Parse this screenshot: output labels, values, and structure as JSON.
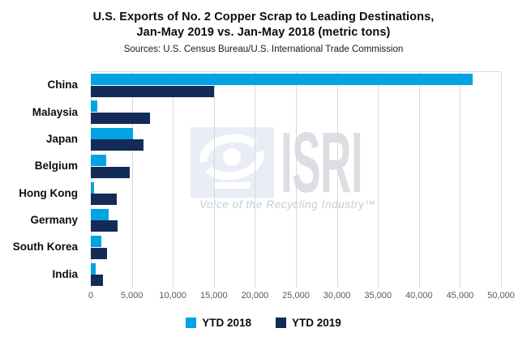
{
  "title": {
    "line1": "U.S. Exports of No. 2 Copper Scrap to Leading Destinations,",
    "line2": "Jan-May 2019 vs. Jan-May 2018 (metric tons)",
    "sources": "Sources: U.S. Census Bureau/U.S. International Trade Commission"
  },
  "watermark": {
    "name": "ISRI",
    "tagline": "Voice of the Recycling Industry™",
    "eye-logo-icon": "isri-eye-logo"
  },
  "colors": {
    "ytd2018": "#00a4e4",
    "ytd2019": "#122b57",
    "gridline": "#d9d9d9",
    "axis_text": "#595959",
    "watermark_square": "#e9edf5",
    "watermark_text": "#dcdee3",
    "watermark_tagline": "#c7ccd6"
  },
  "legend": [
    {
      "label": "YTD 2018",
      "color": "#00a4e4"
    },
    {
      "label": "YTD 2019",
      "color": "#122b57"
    }
  ],
  "chart_data": {
    "type": "bar",
    "orientation": "horizontal",
    "title": "U.S. Exports of No. 2 Copper Scrap to Leading Destinations, Jan-May 2019 vs. Jan-May 2018 (metric tons)",
    "categories": [
      "China",
      "Malaysia",
      "Japan",
      "Belgium",
      "Hong Kong",
      "Germany",
      "South Korea",
      "India"
    ],
    "series": [
      {
        "name": "YTD 2018",
        "color": "#00a4e4",
        "values": [
          46500,
          800,
          5100,
          1900,
          400,
          2200,
          1300,
          550
        ]
      },
      {
        "name": "YTD 2019",
        "color": "#122b57",
        "values": [
          15000,
          7200,
          6400,
          4700,
          3200,
          3300,
          2000,
          1500
        ]
      }
    ],
    "xlabel": "",
    "ylabel": "",
    "xlim": [
      0,
      50000
    ],
    "x_ticks": [
      0,
      5000,
      10000,
      15000,
      20000,
      25000,
      30000,
      35000,
      40000,
      45000,
      50000
    ],
    "x_tick_labels": [
      "0",
      "5,000",
      "10,000",
      "15,000",
      "20,000",
      "25,000",
      "30,000",
      "35,000",
      "40,000",
      "45,000",
      "50,000"
    ],
    "grid": true,
    "legend_position": "bottom"
  }
}
